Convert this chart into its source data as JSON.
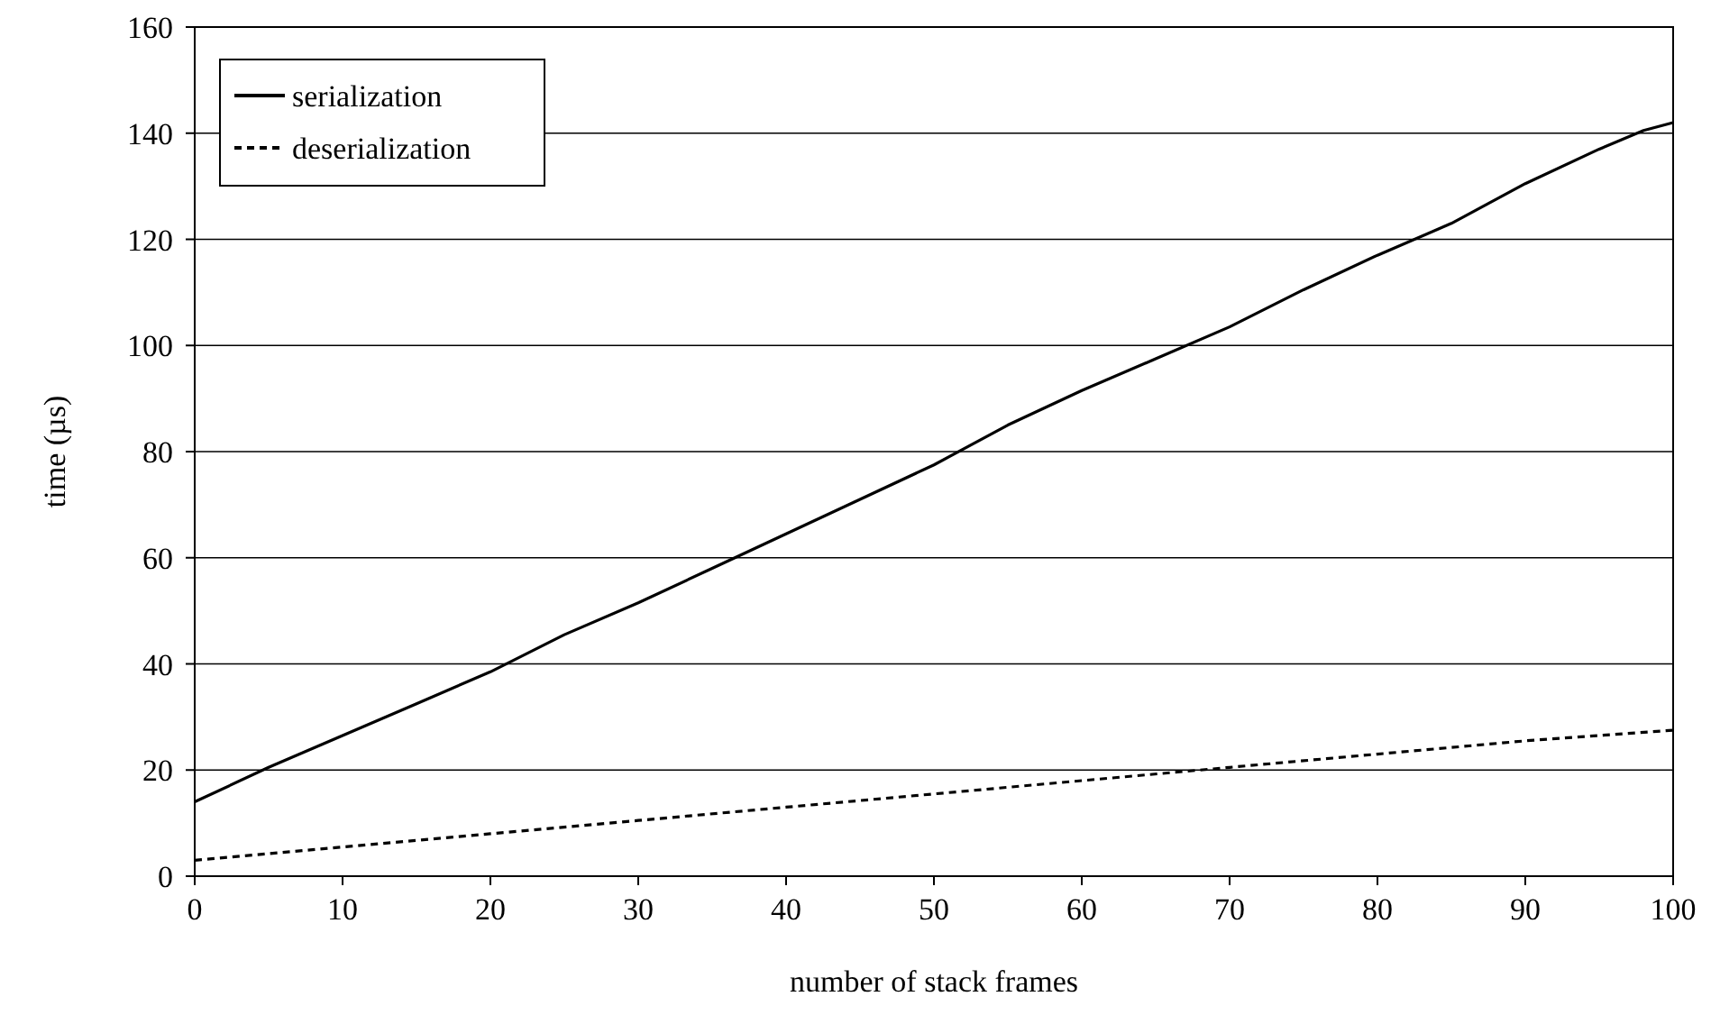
{
  "chart_data": {
    "type": "line",
    "xlabel": "number of stack frames",
    "ylabel": "time (µs)",
    "xlim": [
      0,
      100
    ],
    "xticks": [
      0,
      10,
      20,
      30,
      40,
      50,
      60,
      70,
      80,
      90,
      100
    ],
    "ylim": [
      0,
      160
    ],
    "yticks": [
      0,
      20,
      40,
      60,
      80,
      100,
      120,
      140,
      160
    ],
    "grid": "y",
    "legend": "top left",
    "series": [
      {
        "name": "serialization",
        "color": "#000000",
        "line_style": "solid",
        "x": [
          0,
          5,
          10,
          15,
          20,
          25,
          30,
          35,
          40,
          45,
          50,
          55,
          60,
          65,
          70,
          75,
          80,
          85,
          90,
          95,
          98,
          100
        ],
        "values": [
          14,
          20.5,
          26.5,
          32.5,
          38.5,
          45.5,
          51.5,
          58,
          64.5,
          71,
          77.5,
          85,
          91.5,
          97.5,
          103.5,
          110.5,
          117,
          123,
          130.5,
          137,
          140.5,
          142
        ]
      },
      {
        "name": "deserialization",
        "color": "#000000",
        "line_style": "dashed",
        "x": [
          0,
          10,
          20,
          30,
          40,
          50,
          60,
          70,
          80,
          90,
          100
        ],
        "values": [
          3,
          5.5,
          8,
          10.5,
          13,
          15.5,
          18,
          20.5,
          23,
          25.5,
          27.5
        ]
      }
    ]
  }
}
